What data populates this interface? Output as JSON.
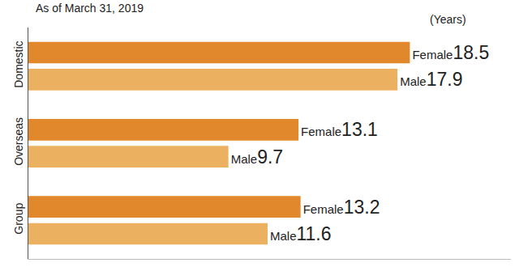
{
  "chart_data": {
    "type": "bar",
    "orientation": "horizontal",
    "title": "As of March 31, 2019",
    "x_label": "(Years)",
    "categories": [
      "Domestic",
      "Overseas",
      "Group"
    ],
    "series": [
      {
        "name": "Female",
        "color": "#e2882c",
        "values": [
          18.5,
          13.1,
          13.2
        ]
      },
      {
        "name": "Male",
        "color": "#ecb061",
        "values": [
          17.9,
          9.7,
          11.6
        ]
      }
    ],
    "xlim": [
      0,
      23.4
    ],
    "xticks": [],
    "grid": false,
    "data_labels": true,
    "tick_labels": "y"
  }
}
